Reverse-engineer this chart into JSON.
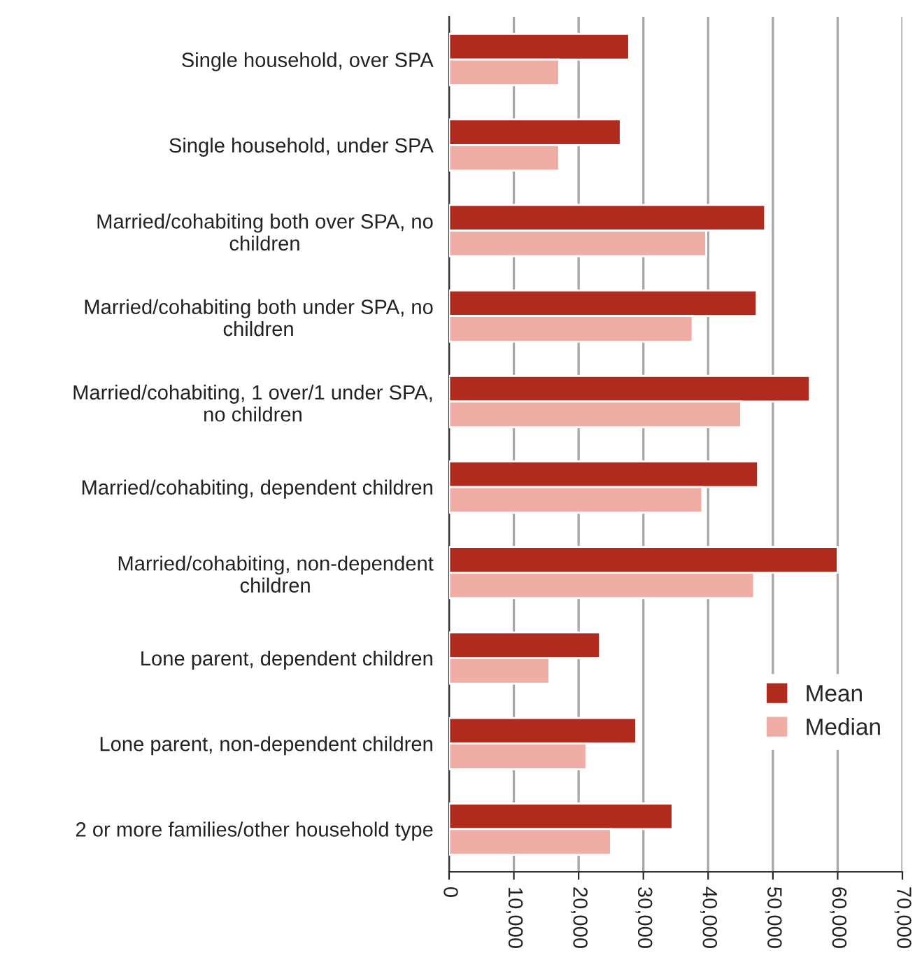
{
  "chart_data": {
    "type": "bar",
    "orientation": "horizontal",
    "categories": [
      "Single household, over SPA",
      "Single household, under SPA",
      "Married/cohabiting both over SPA, no\nchildren",
      "Married/cohabiting both under SPA, no\nchildren",
      "Married/cohabiting, 1 over/1 under SPA,\nno children",
      "Married/cohabiting, dependent children",
      "Married/cohabiting, non-dependent\nchildren",
      "Lone parent, dependent children",
      "Lone parent, non-dependent children",
      "2 or more families/other household type"
    ],
    "series": [
      {
        "name": "Mean",
        "color": "#b02a1e",
        "values": [
          27800,
          26500,
          48800,
          47500,
          55700,
          47700,
          60000,
          23300,
          28900,
          34500
        ]
      },
      {
        "name": "Median",
        "color": "#f0ada5",
        "values": [
          17000,
          17000,
          39700,
          37600,
          45100,
          39100,
          47100,
          15500,
          21200,
          25000
        ]
      }
    ],
    "xlim": [
      0,
      70000
    ],
    "xticks": [
      0,
      {
        "value": 10000,
        "label": "10,000"
      },
      {
        "value": 20000,
        "label": "20,000"
      },
      {
        "value": 30000,
        "label": "30,000"
      },
      {
        "value": 40000,
        "label": "40,000"
      },
      {
        "value": 50000,
        "label": "50,000"
      },
      {
        "value": 60000,
        "label": "60,000"
      },
      {
        "value": 70000,
        "label": "70,000"
      }
    ],
    "grid": "x",
    "legend": "lower right"
  }
}
